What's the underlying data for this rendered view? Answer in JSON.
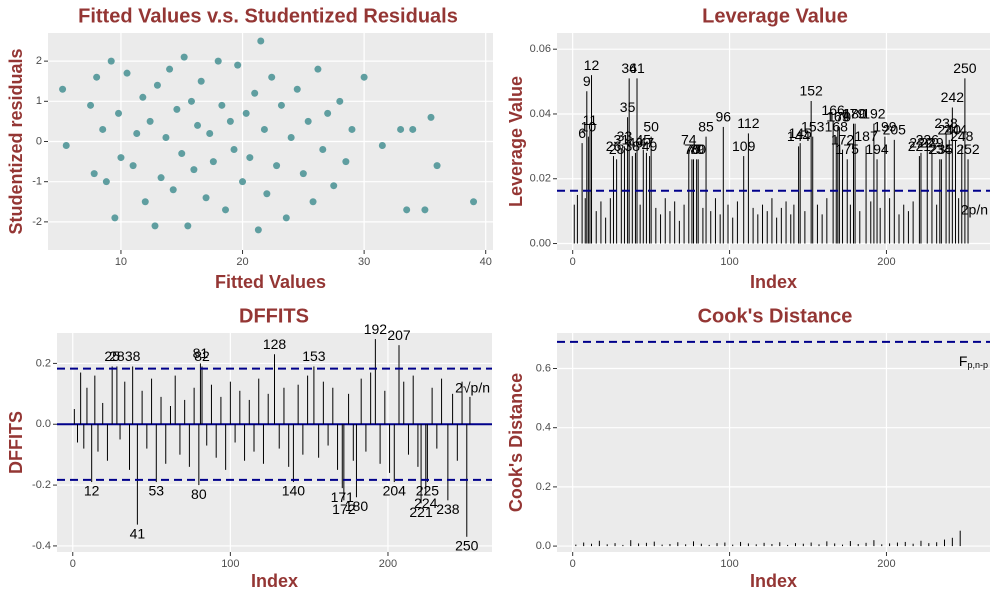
{
  "chart_data": [
    {
      "type": "scatter",
      "title": "Fitted Values v.s. Studentized Residuals",
      "x_label": "Fitted Values",
      "y_label": "Studentized residuals",
      "color": "#5f9ea0",
      "x": [
        5.2,
        5.5,
        7.5,
        7.8,
        8,
        8.5,
        8.8,
        9.2,
        9.5,
        9.8,
        10,
        10.5,
        11,
        11.3,
        11.8,
        12,
        12.4,
        12.8,
        13,
        13.3,
        13.7,
        14,
        14.3,
        14.6,
        15,
        15.2,
        15.5,
        15.8,
        16,
        16.3,
        16.6,
        17,
        17.3,
        17.6,
        18,
        18.3,
        18.6,
        19,
        19.3,
        19.6,
        20,
        20.3,
        20.6,
        21,
        21.3,
        21.5,
        21.8,
        22,
        22.4,
        22.8,
        23.2,
        23.6,
        24,
        24.5,
        25,
        25.4,
        25.8,
        26.2,
        26.6,
        27,
        27.5,
        28,
        28.5,
        29,
        30,
        31.5,
        33,
        33.5,
        34,
        35,
        35.5,
        36,
        39
      ],
      "values": [
        1.3,
        -0.1,
        0.9,
        -0.8,
        1.6,
        0.3,
        -1.0,
        2.0,
        -1.9,
        0.7,
        -0.4,
        1.7,
        -0.6,
        0.2,
        1.1,
        -1.5,
        0.5,
        -2.1,
        1.4,
        -0.9,
        0.1,
        1.8,
        -1.2,
        0.8,
        -0.3,
        2.1,
        -2.1,
        1.0,
        -0.7,
        0.4,
        1.5,
        -1.4,
        0.2,
        -0.5,
        2.0,
        0.9,
        -1.7,
        0.5,
        -0.2,
        1.9,
        -1.0,
        0.7,
        -0.4,
        1.2,
        -2.2,
        2.5,
        0.3,
        -1.3,
        1.6,
        -0.6,
        0.9,
        -1.9,
        0.1,
        1.3,
        -0.8,
        0.5,
        -1.5,
        1.8,
        -0.2,
        0.7,
        -1.1,
        1.0,
        -0.5,
        0.3,
        1.6,
        -0.1,
        0.3,
        -1.7,
        0.3,
        -1.7,
        0.6,
        -0.6,
        -1.5
      ],
      "xlim": [
        4,
        40.6
      ],
      "xticks": [
        10,
        20,
        30,
        40
      ],
      "ylim": [
        -2.7,
        2.7
      ],
      "yticks": [
        -2,
        -1,
        0,
        1,
        2
      ],
      "grid": true
    },
    {
      "type": "spike",
      "title": "Leverage Value",
      "x_label": "Index",
      "y_label": "Leverage Value",
      "color": "#000000",
      "hline_color": "#00008b",
      "x": [
        1,
        3,
        6,
        8,
        9,
        10,
        11,
        12,
        15,
        18,
        21,
        24,
        26,
        28,
        31,
        33,
        35,
        36,
        38,
        40,
        41,
        43,
        45,
        47,
        49,
        50,
        53,
        56,
        59,
        62,
        65,
        68,
        71,
        74,
        76,
        77,
        79,
        80,
        83,
        85,
        88,
        91,
        94,
        96,
        99,
        102,
        105,
        109,
        112,
        115,
        118,
        121,
        124,
        127,
        130,
        133,
        136,
        139,
        141,
        144,
        145,
        148,
        152,
        153,
        156,
        159,
        162,
        166,
        168,
        169,
        170,
        172,
        175,
        177,
        179,
        180,
        183,
        187,
        190,
        192,
        194,
        196,
        199,
        202,
        205,
        208,
        211,
        214,
        217,
        221,
        222,
        226,
        229,
        232,
        234,
        235,
        238,
        240,
        242,
        244,
        246,
        248,
        250,
        252
      ],
      "values": [
        0.012,
        0.015,
        0.031,
        0.014,
        0.047,
        0.033,
        0.035,
        0.052,
        0.01,
        0.013,
        0.008,
        0.014,
        0.027,
        0.026,
        0.029,
        0.03,
        0.039,
        0.051,
        0.027,
        0.028,
        0.051,
        0.012,
        0.029,
        0.028,
        0.027,
        0.033,
        0.011,
        0.009,
        0.014,
        0.01,
        0.013,
        0.007,
        0.012,
        0.029,
        0.026,
        0.026,
        0.026,
        0.026,
        0.011,
        0.033,
        0.01,
        0.014,
        0.009,
        0.036,
        0.012,
        0.008,
        0.013,
        0.027,
        0.034,
        0.011,
        0.009,
        0.012,
        0.01,
        0.014,
        0.008,
        0.011,
        0.013,
        0.009,
        0.012,
        0.03,
        0.031,
        0.01,
        0.044,
        0.033,
        0.012,
        0.009,
        0.014,
        0.038,
        0.033,
        0.036,
        0.036,
        0.029,
        0.026,
        0.012,
        0.037,
        0.037,
        0.01,
        0.03,
        0.013,
        0.037,
        0.026,
        0.011,
        0.033,
        0.014,
        0.032,
        0.009,
        0.012,
        0.01,
        0.013,
        0.027,
        0.028,
        0.029,
        0.028,
        0.012,
        0.026,
        0.026,
        0.034,
        0.032,
        0.042,
        0.032,
        0.014,
        0.03,
        0.051,
        0.026
      ],
      "hlines": [
        0.0163
      ],
      "hline_label": "2p/n",
      "xlim": [
        -10,
        266
      ],
      "xticks": [
        0,
        100,
        200
      ],
      "ylim": [
        -0.002,
        0.065
      ],
      "yticks": [
        {
          "value": 0,
          "label": "0.00"
        },
        0.02,
        0.04,
        0.06
      ],
      "grid": true
    },
    {
      "type": "spike",
      "title": "DFFITS",
      "x_label": "Index",
      "y_label": "DFFITS",
      "color": "#000000",
      "hline_color": "#00008b",
      "x": [
        1,
        3,
        5,
        7,
        9,
        12,
        14,
        16,
        19,
        22,
        25,
        28,
        30,
        33,
        36,
        38,
        41,
        44,
        47,
        50,
        53,
        56,
        59,
        62,
        65,
        68,
        71,
        74,
        77,
        80,
        81,
        82,
        85,
        88,
        91,
        94,
        97,
        100,
        103,
        106,
        109,
        112,
        115,
        118,
        121,
        124,
        128,
        131,
        134,
        137,
        140,
        143,
        146,
        149,
        153,
        156,
        159,
        162,
        165,
        168,
        171,
        172,
        175,
        178,
        180,
        183,
        186,
        189,
        192,
        195,
        198,
        201,
        204,
        207,
        210,
        213,
        216,
        219,
        221,
        224,
        225,
        228,
        231,
        234,
        238,
        241,
        244,
        247,
        250,
        252
      ],
      "values": [
        0.05,
        -0.06,
        0.17,
        -0.08,
        0.12,
        -0.19,
        0.16,
        -0.09,
        0.07,
        -0.12,
        0.19,
        0.19,
        -0.05,
        0.14,
        -0.15,
        0.19,
        -0.33,
        0.11,
        -0.08,
        0.15,
        -0.19,
        0.09,
        -0.13,
        0.06,
        0.16,
        -0.1,
        0.08,
        -0.14,
        0.12,
        -0.2,
        0.2,
        0.19,
        -0.07,
        0.13,
        -0.11,
        0.09,
        -0.15,
        0.14,
        -0.06,
        0.11,
        -0.12,
        0.08,
        -0.09,
        0.15,
        -0.13,
        0.1,
        0.23,
        -0.08,
        0.12,
        -0.14,
        -0.19,
        0.13,
        -0.1,
        0.16,
        0.19,
        -0.11,
        0.14,
        -0.07,
        0.12,
        -0.15,
        -0.21,
        -0.25,
        0.1,
        -0.12,
        -0.24,
        0.15,
        -0.09,
        0.17,
        0.28,
        -0.13,
        0.11,
        -0.16,
        -0.19,
        0.26,
        0.14,
        -0.1,
        0.16,
        -0.14,
        -0.26,
        -0.23,
        -0.19,
        0.12,
        -0.08,
        0.15,
        -0.25,
        0.1,
        -0.12,
        0.14,
        -0.37,
        0.09
      ],
      "hlines": [
        0.183,
        -0.183
      ],
      "hline_label": "2√p/n",
      "xlim": [
        -10,
        266
      ],
      "xticks": [
        0,
        100,
        200
      ],
      "ylim": [
        -0.42,
        0.3
      ],
      "yticks": [
        -0.4,
        -0.2,
        {
          "value": 0,
          "label": "0.0"
        },
        0.2
      ],
      "grid": true
    },
    {
      "type": "spike",
      "title": "Cook's Distance",
      "x_label": "Index",
      "y_label": "Cook's Distance",
      "color": "#000000",
      "hline_color": "#00008b",
      "x": [
        2,
        7,
        12,
        17,
        22,
        27,
        32,
        37,
        42,
        47,
        52,
        57,
        62,
        67,
        72,
        77,
        82,
        87,
        92,
        97,
        102,
        107,
        112,
        117,
        122,
        127,
        132,
        137,
        142,
        147,
        152,
        157,
        162,
        167,
        172,
        177,
        182,
        187,
        192,
        197,
        202,
        207,
        212,
        217,
        222,
        227,
        232,
        237,
        242,
        247
      ],
      "values": [
        0.005,
        0.012,
        0.008,
        0.018,
        0.006,
        0.01,
        0.004,
        0.02,
        0.009,
        0.011,
        0.015,
        0.005,
        0.007,
        0.013,
        0.006,
        0.016,
        0.008,
        0.004,
        0.01,
        0.012,
        0.005,
        0.014,
        0.009,
        0.006,
        0.011,
        0.007,
        0.013,
        0.004,
        0.01,
        0.008,
        0.012,
        0.006,
        0.016,
        0.009,
        0.005,
        0.017,
        0.007,
        0.011,
        0.02,
        0.006,
        0.009,
        0.012,
        0.014,
        0.008,
        0.018,
        0.01,
        0.013,
        0.022,
        0.028,
        0.052
      ],
      "hlines": [
        0.69
      ],
      "hline_label": "F",
      "hline_label_sub": "p,n-p",
      "xlim": [
        -10,
        266
      ],
      "xticks": [
        0,
        100,
        200
      ],
      "ylim": [
        -0.02,
        0.72
      ],
      "yticks": [
        {
          "value": 0,
          "label": "0.0"
        },
        0.2,
        0.4,
        0.6
      ],
      "grid": true
    }
  ]
}
